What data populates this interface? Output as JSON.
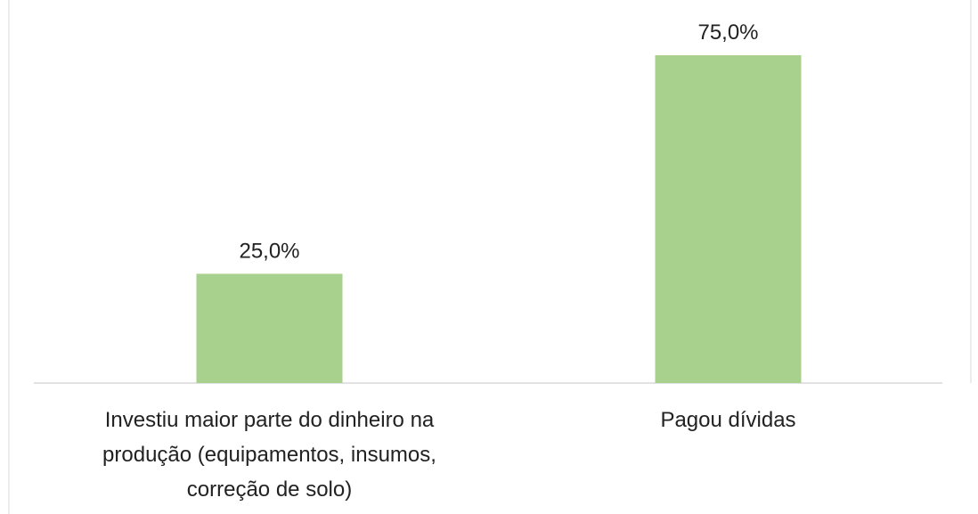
{
  "chart_data": {
    "type": "bar",
    "categories": [
      "Investiu maior parte do dinheiro na produção (equipamentos, insumos, correção de solo)",
      "Pagou dívidas"
    ],
    "values": [
      25,
      75
    ],
    "value_labels": [
      "25,0%",
      "75,0%"
    ],
    "color": "#a9d18e"
  }
}
